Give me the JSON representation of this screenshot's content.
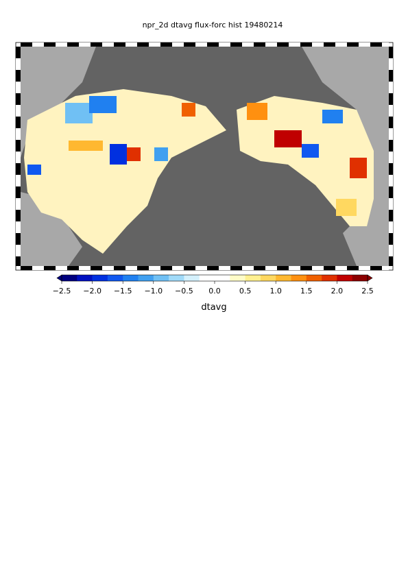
{
  "title": "npr_2d dtavg flux-forc hist 19480214",
  "colorbar": {
    "label": "dtavg",
    "range": [
      -2.5,
      2.5
    ],
    "ticks": [
      {
        "value": -2.5,
        "label": "−2.5"
      },
      {
        "value": -2.0,
        "label": "−2.0"
      },
      {
        "value": -1.5,
        "label": "−1.5"
      },
      {
        "value": -1.0,
        "label": "−1.0"
      },
      {
        "value": -0.5,
        "label": "−0.5"
      },
      {
        "value": 0,
        "label": "0.0"
      },
      0.5,
      {
        "value": 1.0,
        "label": "1.0"
      },
      1.5,
      {
        "value": 2.0,
        "label": "2.0"
      },
      2.5
    ],
    "colors": [
      "#00007f",
      "#0010c0",
      "#0030e0",
      "#1058f0",
      "#2080f0",
      "#40a0f0",
      "#70c0f4",
      "#a0daf8",
      "#d4f0fc",
      "#ffffff",
      "#ffffff",
      "#fffcc8",
      "#fff090",
      "#ffd860",
      "#ffb830",
      "#ff9010",
      "#f06000",
      "#e03000",
      "#c00000",
      "#8c0000"
    ]
  }
}
